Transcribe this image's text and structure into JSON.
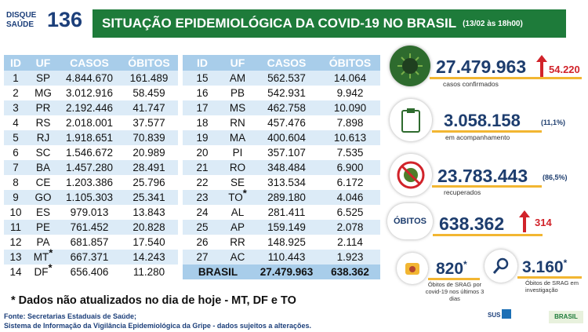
{
  "header": {
    "logo_top": "DISQUE",
    "logo_bottom": "SAÚDE",
    "logo_number": "136",
    "title": "SITUAÇÃO EPIDEMIOLÓGICA DA COVID-19 NO BRASIL",
    "date": "(13/02 às 18h00)"
  },
  "table": {
    "columns": [
      "ID",
      "UF",
      "CASOS",
      "ÓBITOS"
    ],
    "rows": [
      {
        "id": "1",
        "uf": "SP",
        "casos": "4.844.670",
        "obitos": "161.489"
      },
      {
        "id": "2",
        "uf": "MG",
        "casos": "3.012.916",
        "obitos": "58.459"
      },
      {
        "id": "3",
        "uf": "PR",
        "casos": "2.192.446",
        "obitos": "41.747"
      },
      {
        "id": "4",
        "uf": "RS",
        "casos": "2.018.001",
        "obitos": "37.577"
      },
      {
        "id": "5",
        "uf": "RJ",
        "casos": "1.918.651",
        "obitos": "70.839"
      },
      {
        "id": "6",
        "uf": "SC",
        "casos": "1.546.672",
        "obitos": "20.989"
      },
      {
        "id": "7",
        "uf": "BA",
        "casos": "1.457.280",
        "obitos": "28.491"
      },
      {
        "id": "8",
        "uf": "CE",
        "casos": "1.203.386",
        "obitos": "25.796"
      },
      {
        "id": "9",
        "uf": "GO",
        "casos": "1.105.303",
        "obitos": "25.341"
      },
      {
        "id": "10",
        "uf": "ES",
        "casos": "979.013",
        "obitos": "13.843"
      },
      {
        "id": "11",
        "uf": "PE",
        "casos": "761.452",
        "obitos": "20.828"
      },
      {
        "id": "12",
        "uf": "PA",
        "casos": "681.857",
        "obitos": "17.540"
      },
      {
        "id": "13",
        "uf": "MT",
        "flag": "*",
        "casos": "667.371",
        "obitos": "14.243"
      },
      {
        "id": "14",
        "uf": "DF",
        "flag": "*",
        "casos": "656.406",
        "obitos": "11.280"
      },
      {
        "id": "15",
        "uf": "AM",
        "casos": "562.537",
        "obitos": "14.064"
      },
      {
        "id": "16",
        "uf": "PB",
        "casos": "542.931",
        "obitos": "9.942"
      },
      {
        "id": "17",
        "uf": "MS",
        "casos": "462.758",
        "obitos": "10.090"
      },
      {
        "id": "18",
        "uf": "RN",
        "casos": "457.476",
        "obitos": "7.898"
      },
      {
        "id": "19",
        "uf": "MA",
        "casos": "400.604",
        "obitos": "10.613"
      },
      {
        "id": "20",
        "uf": "PI",
        "casos": "357.107",
        "obitos": "7.535"
      },
      {
        "id": "21",
        "uf": "RO",
        "casos": "348.484",
        "obitos": "6.900"
      },
      {
        "id": "22",
        "uf": "SE",
        "casos": "313.534",
        "obitos": "6.172"
      },
      {
        "id": "23",
        "uf": "TO",
        "flag": "*",
        "casos": "289.180",
        "obitos": "4.046"
      },
      {
        "id": "24",
        "uf": "AL",
        "casos": "281.411",
        "obitos": "6.525"
      },
      {
        "id": "25",
        "uf": "AP",
        "casos": "159.149",
        "obitos": "2.078"
      },
      {
        "id": "26",
        "uf": "RR",
        "casos": "148.925",
        "obitos": "2.114"
      },
      {
        "id": "27",
        "uf": "AC",
        "casos": "110.443",
        "obitos": "1.923"
      }
    ],
    "total": {
      "label": "BRASIL",
      "casos": "27.479.963",
      "obitos": "638.362"
    }
  },
  "note": "* Dados não atualizados no dia de hoje - MT, DF e TO",
  "source": [
    "Fonte: Secretarias Estaduais de Saúde;",
    "Sistema de Informação da Vigilância Epidemiológica da Gripe - dados sujeitos a alterações."
  ],
  "summary": {
    "confirmed": {
      "value": "27.479.963",
      "change": "54.220",
      "label": "casos confirmados"
    },
    "monitoring": {
      "value": "3.058.158",
      "percent": "(11,1%)",
      "label": "em acompanhamento"
    },
    "recovered": {
      "value": "23.783.443",
      "percent": "(86,5%)",
      "label": "recuperados"
    },
    "deaths": {
      "title": "ÓBITOS",
      "value": "638.362",
      "change": "314"
    },
    "srag_deaths": {
      "value": "820",
      "flag": "*",
      "label": "Óbitos de SRAG por covid-19 nos últimos 3 dias"
    },
    "srag_investigation": {
      "value": "3.160",
      "flag": "*",
      "label": "Óbitos de SRAG em investigação"
    }
  },
  "footer_logos": {
    "sus": "SUS",
    "brasil": "BRASIL"
  }
}
